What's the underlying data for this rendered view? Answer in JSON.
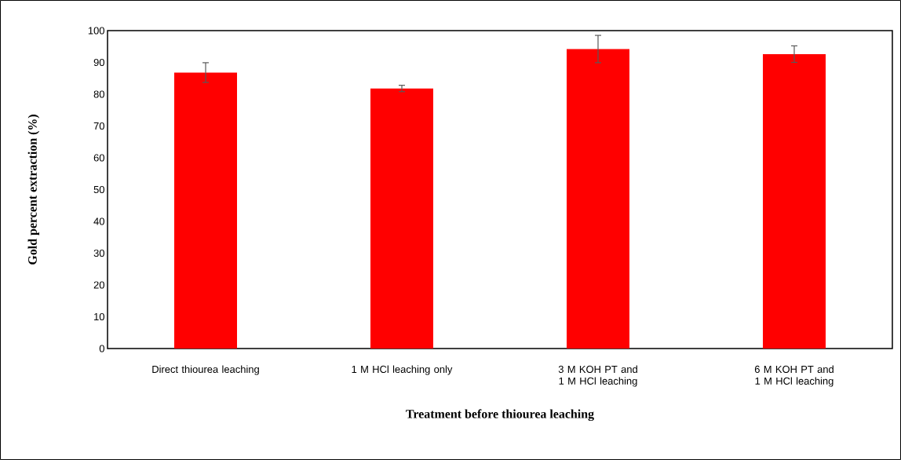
{
  "chart_data": {
    "type": "bar",
    "xlabel": "Treatment before thiourea leaching",
    "ylabel": "Gold percent extraction (%)",
    "categories": [
      "Direct thiourea leaching",
      "1 M HCl leaching only",
      "3 M KOH PT and 1 M HCl leaching",
      "6 M KOH PT and 1 M HCl leaching"
    ],
    "values": [
      86.8,
      81.8,
      94.2,
      92.6
    ],
    "errors": [
      3.1,
      1.0,
      4.3,
      2.6
    ],
    "color": "#ff0000",
    "ylim": [
      0,
      100
    ],
    "yticks": [
      0,
      10,
      20,
      30,
      40,
      50,
      60,
      70,
      80,
      90,
      100
    ],
    "grid": false
  }
}
